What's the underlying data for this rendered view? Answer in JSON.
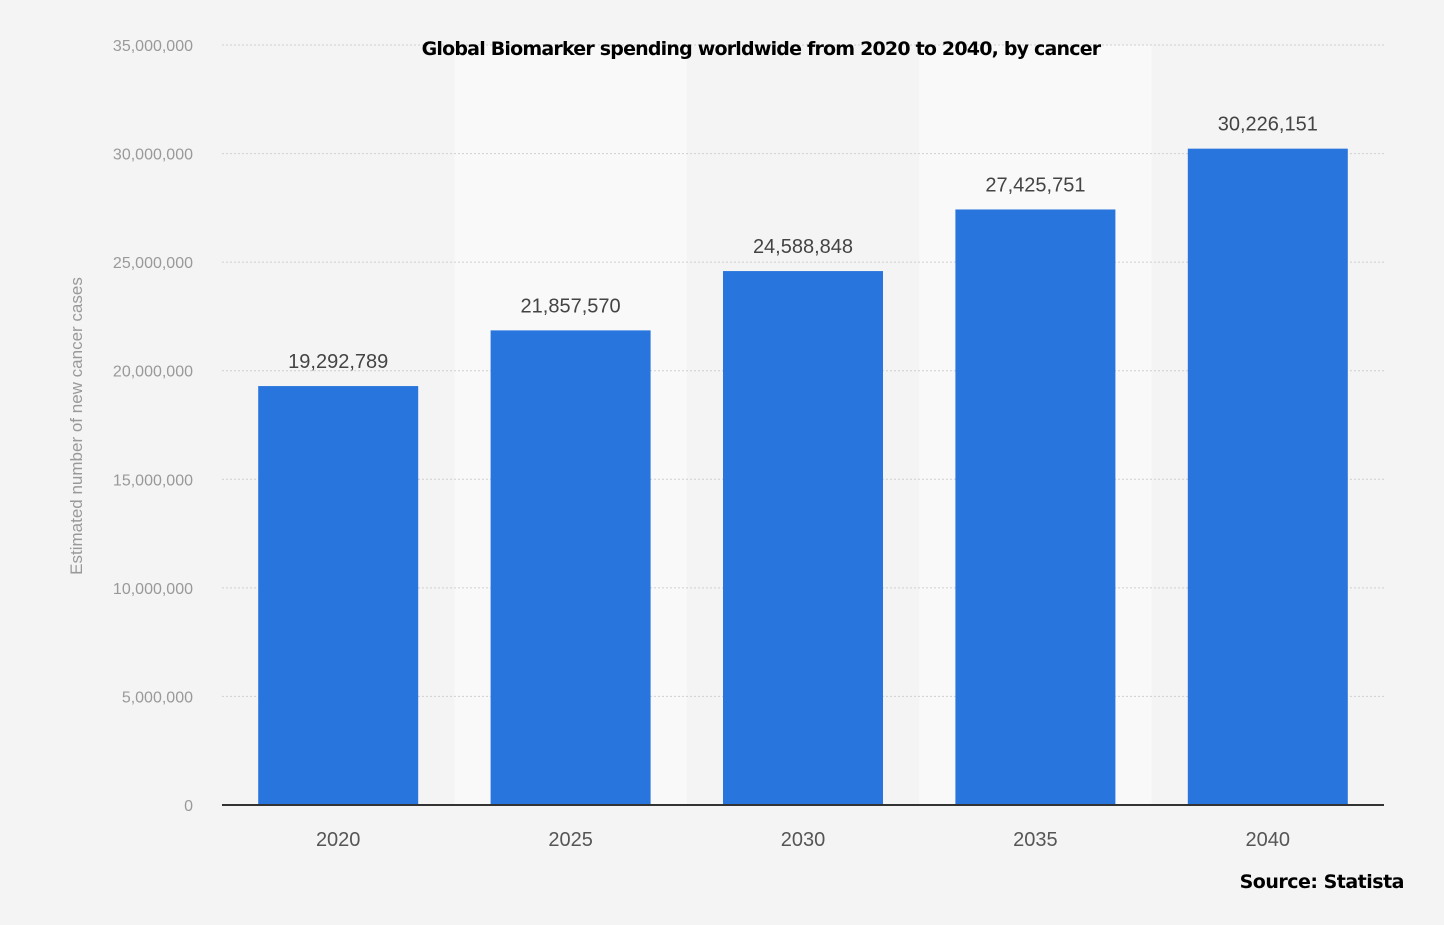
{
  "chart_data": {
    "type": "bar",
    "title": "Global Biomarker spending worldwide from 2020 to 2040, by cancer",
    "xlabel": "",
    "ylabel": "Estimated number of new cancer cases",
    "categories": [
      "2020",
      "2025",
      "2030",
      "2035",
      "2040"
    ],
    "values": [
      19292789,
      21857570,
      24588848,
      27425751,
      30226151
    ],
    "data_labels": [
      "19,292,789",
      "21,857,570",
      "24,588,848",
      "27,425,751",
      "30,226,151"
    ],
    "ylim": [
      0,
      35000000
    ],
    "yticks": [
      0,
      5000000,
      10000000,
      15000000,
      20000000,
      25000000,
      30000000,
      35000000
    ],
    "ytick_labels": [
      "0",
      "5,000,000",
      "10,000,000",
      "15,000,000",
      "20,000,000",
      "25,000,000",
      "30,000,000",
      "35,000,000"
    ],
    "grid": true,
    "bar_color": "#2876dd",
    "source": "Source: Statista"
  }
}
